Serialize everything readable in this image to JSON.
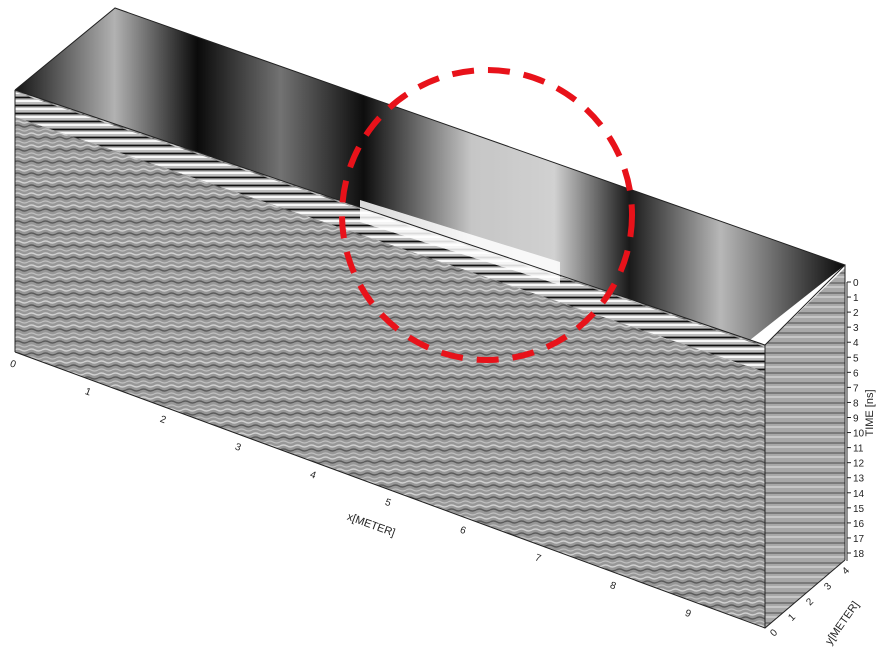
{
  "chart_data": {
    "type": "heatmap",
    "title": "",
    "xlabel": "x[METER]",
    "ylabel": "y[METER]",
    "zlabel": "TIME [ns]",
    "x_ticks": [
      "0",
      "1",
      "2",
      "3",
      "4",
      "5",
      "6",
      "7",
      "8",
      "9"
    ],
    "y_ticks": [
      "0",
      "1",
      "2",
      "3",
      "4"
    ],
    "time_ticks": [
      "0",
      "1",
      "2",
      "3",
      "4",
      "5",
      "6",
      "7",
      "8",
      "9",
      "10",
      "11",
      "12",
      "13",
      "14",
      "15",
      "16",
      "17",
      "18"
    ],
    "xlim": [
      0,
      10
    ],
    "ylim": [
      0,
      4
    ],
    "timelim": [
      0,
      18.5
    ],
    "colormap": "grayscale",
    "annotation": {
      "shape": "dashed-circle",
      "color": "#e8121a",
      "description": "highlighted anomaly"
    }
  }
}
